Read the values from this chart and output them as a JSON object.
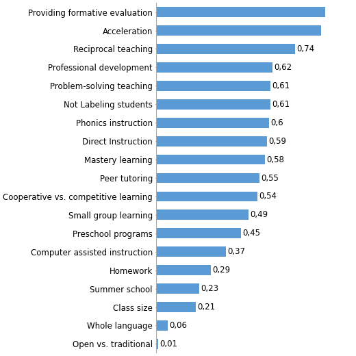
{
  "categories": [
    "Open vs. traditional",
    "Whole language",
    "Class size",
    "Summer school",
    "Homework",
    "Computer assisted instruction",
    "Preschool programs",
    "Small group learning",
    "Cooperative vs. competitive learning",
    "Peer tutoring",
    "Mastery learning",
    "Direct Instruction",
    "Phonics instruction",
    "Not Labeling students",
    "Problem-solving teaching",
    "Professional development",
    "Reciprocal teaching",
    "Acceleration",
    "Providing formative evaluation"
  ],
  "values": [
    0.01,
    0.06,
    0.21,
    0.23,
    0.29,
    0.37,
    0.45,
    0.49,
    0.54,
    0.55,
    0.58,
    0.59,
    0.6,
    0.61,
    0.61,
    0.62,
    0.74,
    0.88,
    0.9
  ],
  "labels": [
    "0,01",
    "0,06",
    "0,21",
    "0,23",
    "0,29",
    "0,37",
    "0,45",
    "0,49",
    "0,54",
    "0,55",
    "0,58",
    "0,59",
    "0,6",
    "0,61",
    "0,61",
    "0,62",
    "0,74",
    "",
    ""
  ],
  "bar_color": "#5b9bd5",
  "background_color": "#ffffff",
  "label_fontsize": 8.5,
  "category_fontsize": 8.5,
  "xlim": [
    0,
    1.05
  ],
  "bar_height": 0.55
}
